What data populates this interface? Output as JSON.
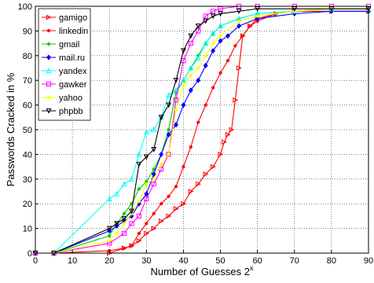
{
  "chart_data": {
    "type": "line",
    "title": "",
    "xlabel": "Number of Guesses 2",
    "xlabel_superscript": "x",
    "ylabel": "Passwords Cracked in %",
    "xlim": [
      0,
      90
    ],
    "ylim": [
      0,
      100
    ],
    "xticks": [
      0,
      10,
      20,
      30,
      40,
      50,
      60,
      70,
      80,
      90
    ],
    "yticks": [
      0,
      10,
      20,
      30,
      40,
      50,
      60,
      70,
      80,
      90,
      100
    ],
    "grid": true,
    "legend_position": "top-left",
    "series": [
      {
        "name": "gamigo",
        "color": "#ff0000",
        "marker": "triangle-right",
        "x": [
          0,
          5,
          20,
          24,
          26,
          28,
          30,
          32,
          34,
          36,
          38,
          40,
          42,
          44,
          46,
          48,
          50,
          51,
          52,
          53,
          54,
          55,
          56,
          58,
          60,
          65,
          70,
          80,
          90
        ],
        "y": [
          0,
          0,
          0,
          2,
          3,
          5,
          8,
          10,
          13,
          15,
          18,
          20,
          25,
          28,
          32,
          35,
          40,
          45,
          48,
          50,
          62,
          75,
          88,
          92,
          95,
          97,
          98,
          98,
          98
        ]
      },
      {
        "name": "linkedin",
        "color": "#ff0000",
        "marker": "dot",
        "x": [
          0,
          5,
          20,
          24,
          26,
          28,
          30,
          32,
          34,
          36,
          38,
          40,
          42,
          44,
          46,
          48,
          50,
          52,
          54,
          56,
          58,
          60,
          65,
          70,
          80,
          90
        ],
        "y": [
          0,
          0,
          1,
          2,
          3,
          8,
          12,
          16,
          20,
          23,
          27,
          35,
          43,
          53,
          60,
          67,
          73,
          78,
          84,
          88,
          92,
          94,
          97,
          98,
          99,
          99
        ]
      },
      {
        "name": "gmail",
        "color": "#00cc00",
        "marker": "dot",
        "x": [
          0,
          5,
          20,
          22,
          24,
          26,
          28,
          30,
          32,
          34,
          36,
          38,
          40,
          42,
          44,
          46,
          48,
          50,
          55,
          60,
          70,
          80,
          90
        ],
        "y": [
          0,
          0,
          7,
          12,
          16,
          20,
          26,
          29,
          34,
          40,
          50,
          65,
          70,
          75,
          80,
          85,
          89,
          92,
          95,
          97,
          98,
          99,
          99
        ]
      },
      {
        "name": "mail.ru",
        "color": "#0000ff",
        "marker": "diamond",
        "x": [
          0,
          5,
          20,
          22,
          24,
          26,
          28,
          30,
          32,
          34,
          36,
          38,
          40,
          42,
          44,
          46,
          48,
          50,
          52,
          55,
          60,
          70,
          80,
          90
        ],
        "y": [
          0,
          0,
          9,
          11,
          13,
          15,
          20,
          24,
          32,
          40,
          48,
          52,
          60,
          66,
          70,
          76,
          82,
          86,
          88,
          92,
          95,
          97,
          98,
          98
        ]
      },
      {
        "name": "yandex",
        "color": "#00ffff",
        "marker": "triangle-up",
        "x": [
          0,
          5,
          20,
          22,
          24,
          26,
          28,
          30,
          32,
          34,
          36,
          38,
          40,
          42,
          44,
          46,
          48,
          50,
          55,
          60,
          70,
          80,
          90
        ],
        "y": [
          0,
          0,
          22,
          24,
          28,
          30,
          40,
          49,
          50,
          55,
          64,
          66,
          70,
          75,
          79,
          85,
          89,
          92,
          95,
          97,
          98,
          99,
          99
        ]
      },
      {
        "name": "gawker",
        "color": "#ff00ff",
        "marker": "square",
        "x": [
          0,
          5,
          20,
          24,
          26,
          28,
          30,
          32,
          34,
          36,
          38,
          40,
          42,
          44,
          46,
          48,
          50,
          55,
          60,
          70,
          80,
          90
        ],
        "y": [
          0,
          0,
          4,
          8,
          12,
          15,
          22,
          28,
          34,
          40,
          62,
          78,
          85,
          90,
          96,
          98,
          99,
          100,
          100,
          100,
          100,
          100
        ]
      },
      {
        "name": "yahoo",
        "color": "#ffff00",
        "marker": "dot",
        "x": [
          0,
          5,
          20,
          22,
          24,
          26,
          28,
          30,
          32,
          34,
          36,
          38,
          40,
          42,
          44,
          46,
          48,
          50,
          55,
          60,
          70,
          80,
          90
        ],
        "y": [
          0,
          0,
          5,
          8,
          12,
          16,
          21,
          28,
          30,
          36,
          40,
          58,
          68,
          72,
          75,
          80,
          85,
          88,
          94,
          96,
          98,
          99,
          99
        ]
      },
      {
        "name": "phpbb",
        "color": "#000000",
        "marker": "triangle-down",
        "x": [
          0,
          5,
          20,
          22,
          24,
          26,
          28,
          30,
          32,
          34,
          36,
          38,
          40,
          42,
          44,
          46,
          48,
          50,
          55,
          60,
          70,
          80,
          90
        ],
        "y": [
          0,
          0,
          10,
          12,
          14,
          17,
          36,
          39,
          42,
          55,
          60,
          70,
          82,
          88,
          92,
          94,
          96,
          97,
          98,
          99,
          99,
          99,
          99
        ]
      }
    ]
  }
}
